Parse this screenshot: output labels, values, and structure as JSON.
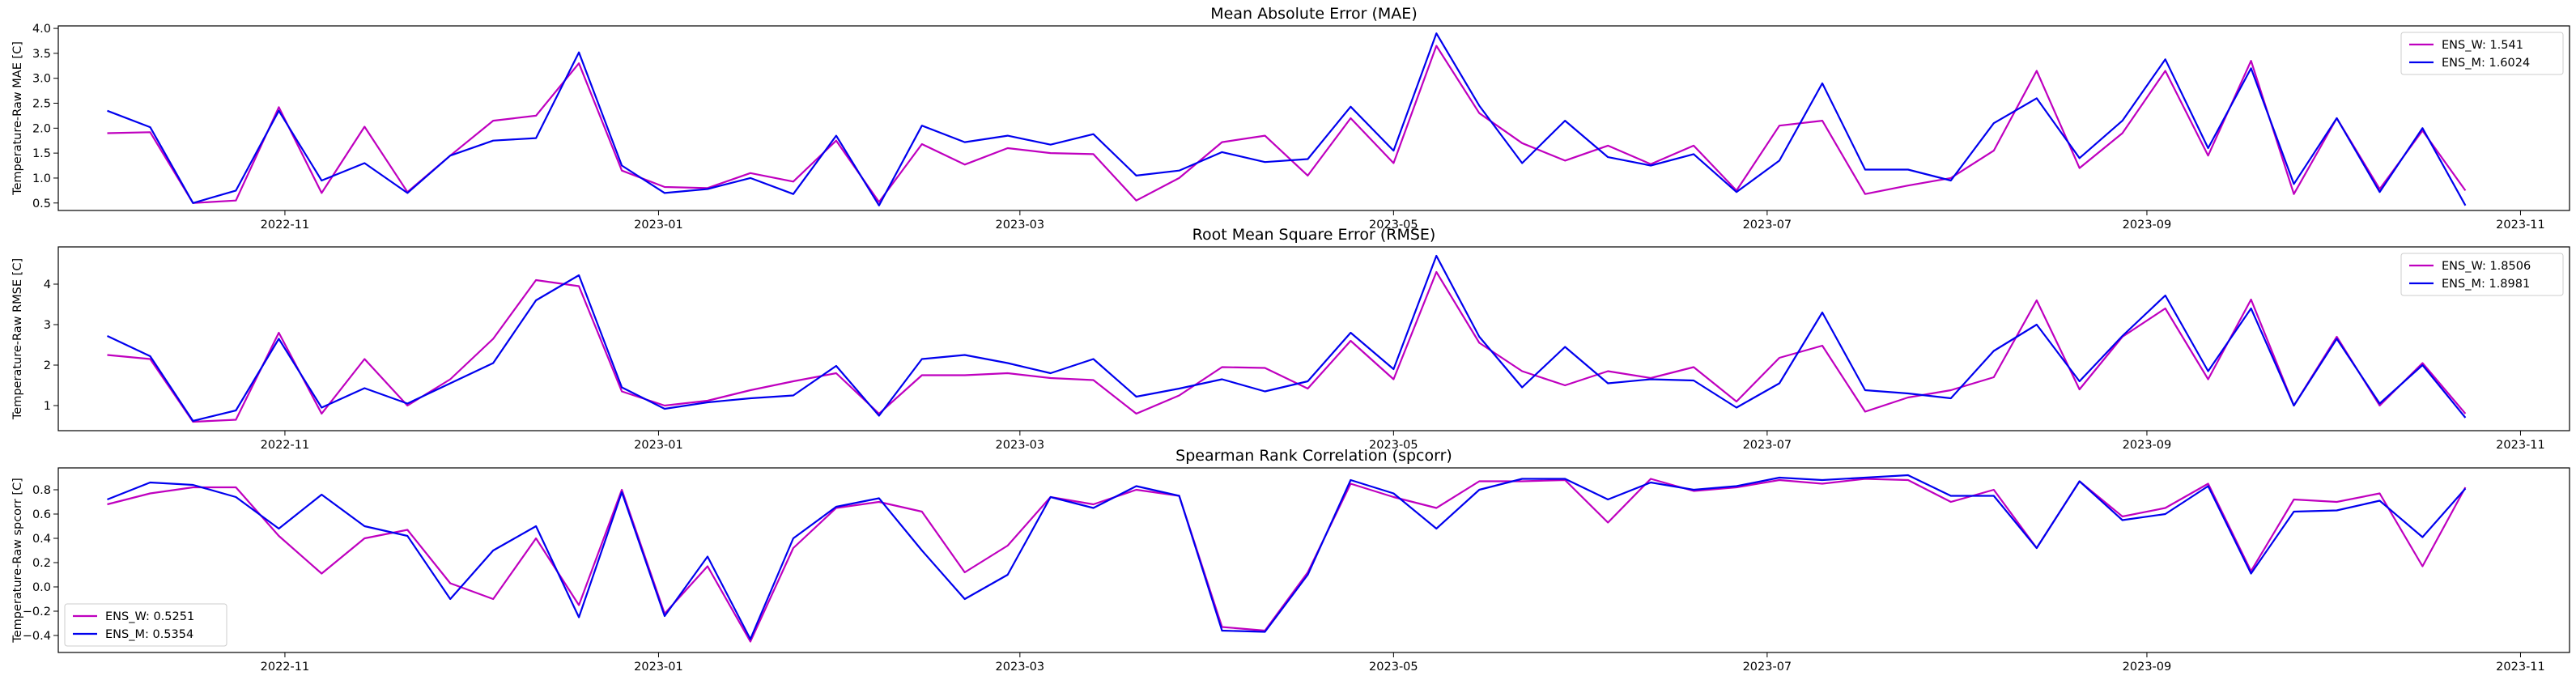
{
  "chart_data": [
    {
      "type": "line",
      "title": "Mean Absolute Error (MAE)",
      "xlabel": "",
      "ylabel": "Temperature-Raw MAE [C]",
      "ylim": [
        0.35,
        4.05
      ],
      "yticks": [
        0.5,
        1.0,
        1.5,
        2.0,
        2.5,
        3.0,
        3.5,
        4.0
      ],
      "ytick_labels": [
        "0.5",
        "1.0",
        "1.5",
        "2.0",
        "2.5",
        "3.0",
        "3.5",
        "4.0"
      ],
      "legend_position": "top-right",
      "series": [
        {
          "name": "ENS_W: 1.541",
          "color": "#bf00bf",
          "values": [
            1.9,
            1.92,
            0.5,
            0.55,
            2.42,
            0.7,
            2.03,
            0.72,
            1.45,
            2.15,
            2.25,
            3.3,
            1.15,
            0.82,
            0.8,
            1.1,
            0.93,
            1.75,
            0.52,
            1.68,
            1.27,
            1.6,
            1.5,
            1.48,
            0.55,
            1.0,
            1.72,
            1.85,
            1.05,
            2.2,
            1.3,
            3.65,
            2.3,
            1.7,
            1.35,
            1.65,
            1.28,
            1.65,
            0.75,
            2.05,
            2.15,
            0.68,
            0.85,
            1.0,
            1.55,
            3.15,
            1.2,
            1.9,
            3.15,
            1.45,
            3.35,
            0.68,
            2.2,
            0.78,
            1.95,
            0.75
          ]
        },
        {
          "name": "ENS_M: 1.6024",
          "color": "#0000ee",
          "values": [
            2.35,
            2.02,
            0.5,
            0.75,
            2.35,
            0.95,
            1.3,
            0.7,
            1.45,
            1.75,
            1.8,
            3.52,
            1.25,
            0.7,
            0.78,
            1.0,
            0.68,
            1.85,
            0.45,
            2.05,
            1.72,
            1.85,
            1.67,
            1.88,
            1.05,
            1.15,
            1.52,
            1.32,
            1.38,
            2.43,
            1.55,
            3.9,
            2.45,
            1.3,
            2.15,
            1.42,
            1.25,
            1.48,
            0.72,
            1.35,
            2.9,
            1.17,
            1.17,
            0.95,
            2.1,
            2.6,
            1.4,
            2.15,
            3.38,
            1.6,
            3.2,
            0.88,
            2.2,
            0.72,
            2.0,
            0.45
          ]
        }
      ]
    },
    {
      "type": "line",
      "title": "Root Mean Square Error (RMSE)",
      "xlabel": "",
      "ylabel": "Temperature-Raw RMSE [C]",
      "ylim": [
        0.38,
        4.92
      ],
      "yticks": [
        1,
        2,
        3,
        4
      ],
      "ytick_labels": [
        "1",
        "2",
        "3",
        "4"
      ],
      "legend_position": "top-right",
      "series": [
        {
          "name": "ENS_W: 1.8506",
          "color": "#bf00bf",
          "values": [
            2.25,
            2.15,
            0.6,
            0.65,
            2.8,
            0.8,
            2.15,
            1.0,
            1.65,
            2.65,
            4.1,
            3.95,
            1.35,
            1.0,
            1.12,
            1.38,
            1.6,
            1.8,
            0.8,
            1.75,
            1.75,
            1.8,
            1.68,
            1.63,
            0.8,
            1.25,
            1.95,
            1.93,
            1.42,
            2.6,
            1.65,
            4.3,
            2.55,
            1.85,
            1.5,
            1.85,
            1.68,
            1.95,
            1.1,
            2.18,
            2.48,
            0.85,
            1.2,
            1.38,
            1.7,
            3.6,
            1.4,
            2.7,
            3.4,
            1.65,
            3.62,
            1.0,
            2.7,
            1.0,
            2.05,
            0.8
          ]
        },
        {
          "name": "ENS_M: 1.8981",
          "color": "#0000ee",
          "values": [
            2.72,
            2.22,
            0.62,
            0.88,
            2.65,
            0.95,
            1.43,
            1.05,
            1.55,
            2.05,
            3.6,
            4.22,
            1.45,
            0.92,
            1.08,
            1.18,
            1.25,
            1.98,
            0.75,
            2.15,
            2.25,
            2.05,
            1.8,
            2.15,
            1.22,
            1.42,
            1.65,
            1.35,
            1.6,
            2.8,
            1.9,
            4.7,
            2.7,
            1.45,
            2.45,
            1.55,
            1.65,
            1.62,
            0.95,
            1.55,
            3.3,
            1.38,
            1.3,
            1.18,
            2.35,
            3.0,
            1.6,
            2.72,
            3.72,
            1.85,
            3.4,
            1.0,
            2.65,
            1.05,
            2.0,
            0.7
          ]
        }
      ]
    },
    {
      "type": "line",
      "title": "Spearman Rank Correlation (spcorr)",
      "xlabel": "",
      "ylabel": "Temperature-Raw spcorr [C]",
      "ylim": [
        -0.54,
        0.98
      ],
      "yticks": [
        -0.4,
        -0.2,
        0.0,
        0.2,
        0.4,
        0.6,
        0.8
      ],
      "ytick_labels": [
        "−0.4",
        "−0.2",
        "0.0",
        "0.2",
        "0.4",
        "0.6",
        "0.8"
      ],
      "legend_position": "bottom-left",
      "series": [
        {
          "name": "ENS_W: 0.5251",
          "color": "#bf00bf",
          "values": [
            0.68,
            0.77,
            0.82,
            0.82,
            0.42,
            0.11,
            0.4,
            0.47,
            0.03,
            -0.1,
            0.4,
            -0.15,
            0.8,
            -0.22,
            0.17,
            -0.45,
            0.32,
            0.65,
            0.7,
            0.62,
            0.12,
            0.34,
            0.74,
            0.68,
            0.8,
            0.75,
            -0.33,
            -0.36,
            0.12,
            0.85,
            0.74,
            0.65,
            0.87,
            0.87,
            0.88,
            0.53,
            0.89,
            0.79,
            0.82,
            0.88,
            0.85,
            0.89,
            0.88,
            0.7,
            0.8,
            0.32,
            0.87,
            0.58,
            0.65,
            0.85,
            0.13,
            0.72,
            0.7,
            0.77,
            0.17,
            0.82
          ]
        },
        {
          "name": "ENS_M: 0.5354",
          "color": "#0000ee",
          "values": [
            0.72,
            0.86,
            0.84,
            0.74,
            0.48,
            0.76,
            0.5,
            0.42,
            -0.1,
            0.3,
            0.5,
            -0.25,
            0.78,
            -0.24,
            0.25,
            -0.43,
            0.4,
            0.66,
            0.73,
            0.3,
            -0.1,
            0.1,
            0.74,
            0.65,
            0.83,
            0.75,
            -0.36,
            -0.37,
            0.1,
            0.88,
            0.77,
            0.48,
            0.8,
            0.89,
            0.89,
            0.72,
            0.86,
            0.8,
            0.83,
            0.9,
            0.88,
            0.9,
            0.92,
            0.75,
            0.75,
            0.32,
            0.87,
            0.55,
            0.6,
            0.83,
            0.11,
            0.62,
            0.63,
            0.71,
            0.41,
            0.81
          ]
        }
      ]
    }
  ],
  "x_axis": {
    "dates": [
      "2022-10-03",
      "2022-10-10",
      "2022-10-17",
      "2022-10-24",
      "2022-10-31",
      "2022-11-07",
      "2022-11-14",
      "2022-11-21",
      "2022-11-28",
      "2022-12-05",
      "2022-12-12",
      "2022-12-19",
      "2022-12-26",
      "2023-01-02",
      "2023-01-09",
      "2023-01-16",
      "2023-01-23",
      "2023-01-30",
      "2023-02-06",
      "2023-02-13",
      "2023-02-20",
      "2023-02-27",
      "2023-03-06",
      "2023-03-13",
      "2023-03-20",
      "2023-03-27",
      "2023-04-03",
      "2023-04-10",
      "2023-04-17",
      "2023-04-24",
      "2023-05-01",
      "2023-05-08",
      "2023-05-15",
      "2023-05-22",
      "2023-05-29",
      "2023-06-05",
      "2023-06-12",
      "2023-06-19",
      "2023-06-26",
      "2023-07-03",
      "2023-07-10",
      "2023-07-17",
      "2023-07-24",
      "2023-07-31",
      "2023-08-07",
      "2023-08-14",
      "2023-08-21",
      "2023-08-28",
      "2023-09-04",
      "2023-09-11",
      "2023-09-18",
      "2023-09-25",
      "2023-10-02",
      "2023-10-09",
      "2023-10-16",
      "2023-10-23"
    ],
    "xlim": [
      "2022-09-25",
      "2023-11-09"
    ],
    "ticks": [
      "2022-11-01",
      "2023-01-01",
      "2023-03-01",
      "2023-05-01",
      "2023-07-01",
      "2023-09-01",
      "2023-11-01"
    ],
    "tick_labels": [
      "2022-11",
      "2023-01",
      "2023-03",
      "2023-05",
      "2023-07",
      "2023-09",
      "2023-11"
    ]
  }
}
